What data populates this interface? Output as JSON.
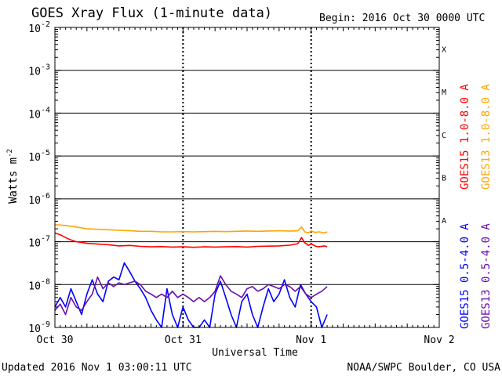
{
  "header": {
    "title": "GOES Xray Flux (1-minute data)",
    "begin": "Begin:  2016 Oct 30 0000 UTC"
  },
  "footer": {
    "updated": "Updated 2016 Nov  1 03:00:11 UTC",
    "credit": "NOAA/SWPC Boulder, CO USA"
  },
  "chart_data": {
    "type": "line",
    "title": "GOES Xray Flux (1-minute data)",
    "xlabel": "Universal Time",
    "ylabel": "Watts m",
    "ylabel_exponent": "-2",
    "yscale": "log",
    "ylim": [
      1e-09,
      0.01
    ],
    "xlim_hours": [
      0,
      72
    ],
    "x_ticks": [
      {
        "label": "Oct 30",
        "hour": 0
      },
      {
        "label": "Oct 31",
        "hour": 24
      },
      {
        "label": "Nov 1",
        "hour": 48
      },
      {
        "label": "Nov 2",
        "hour": 72
      }
    ],
    "y_ticks": [
      {
        "base": "10",
        "exp": "-2",
        "value": 0.01
      },
      {
        "base": "10",
        "exp": "-3",
        "value": 0.001
      },
      {
        "base": "10",
        "exp": "-4",
        "value": 0.0001
      },
      {
        "base": "10",
        "exp": "-5",
        "value": 1e-05
      },
      {
        "base": "10",
        "exp": "-6",
        "value": 1e-06
      },
      {
        "base": "10",
        "exp": "-7",
        "value": 1e-07
      },
      {
        "base": "10",
        "exp": "-8",
        "value": 1e-08
      },
      {
        "base": "10",
        "exp": "-9",
        "value": 1e-09
      }
    ],
    "flare_classes": [
      {
        "label": "X",
        "value": 0.001
      },
      {
        "label": "M",
        "value": 0.0001
      },
      {
        "label": "C",
        "value": 1e-05
      },
      {
        "label": "B",
        "value": 1e-06
      },
      {
        "label": "A",
        "value": 1e-07
      }
    ],
    "grid": true,
    "legend_position": "right",
    "series": [
      {
        "name": "GOES15 1.0-8.0 A",
        "color": "#ff0000",
        "points": [
          [
            0,
            1.6e-07
          ],
          [
            1,
            1.45e-07
          ],
          [
            2,
            1.25e-07
          ],
          [
            3,
            1.1e-07
          ],
          [
            4,
            1e-07
          ],
          [
            6,
            9.2e-08
          ],
          [
            8,
            8.8e-08
          ],
          [
            10,
            8.5e-08
          ],
          [
            12,
            8e-08
          ],
          [
            14,
            8.2e-08
          ],
          [
            16,
            7.8e-08
          ],
          [
            18,
            7.6e-08
          ],
          [
            20,
            7.7e-08
          ],
          [
            22,
            7.5e-08
          ],
          [
            24,
            7.6e-08
          ],
          [
            26,
            7.4e-08
          ],
          [
            28,
            7.6e-08
          ],
          [
            30,
            7.5e-08
          ],
          [
            32,
            7.6e-08
          ],
          [
            34,
            7.7e-08
          ],
          [
            36,
            7.5e-08
          ],
          [
            38,
            7.8e-08
          ],
          [
            40,
            7.9e-08
          ],
          [
            42,
            8e-08
          ],
          [
            44,
            8.3e-08
          ],
          [
            45.5,
            9e-08
          ],
          [
            46.2,
            1.25e-07
          ],
          [
            46.8,
            9.5e-08
          ],
          [
            47.5,
            8.2e-08
          ],
          [
            48,
            9e-08
          ],
          [
            48.7,
            8e-08
          ],
          [
            49.3,
            7.6e-08
          ],
          [
            50.5,
            8e-08
          ],
          [
            51,
            7.6e-08
          ]
        ]
      },
      {
        "name": "GOES13 1.0-8.0 A",
        "color": "#ffa500",
        "points": [
          [
            0,
            2.5e-07
          ],
          [
            2,
            2.4e-07
          ],
          [
            4,
            2.2e-07
          ],
          [
            6,
            2e-07
          ],
          [
            8,
            1.95e-07
          ],
          [
            10,
            1.9e-07
          ],
          [
            12,
            1.85e-07
          ],
          [
            14,
            1.8e-07
          ],
          [
            16,
            1.75e-07
          ],
          [
            18,
            1.75e-07
          ],
          [
            20,
            1.7e-07
          ],
          [
            22,
            1.7e-07
          ],
          [
            24,
            1.72e-07
          ],
          [
            26,
            1.7e-07
          ],
          [
            28,
            1.72e-07
          ],
          [
            30,
            1.75e-07
          ],
          [
            32,
            1.72e-07
          ],
          [
            34,
            1.75e-07
          ],
          [
            36,
            1.78e-07
          ],
          [
            38,
            1.75e-07
          ],
          [
            40,
            1.78e-07
          ],
          [
            42,
            1.8e-07
          ],
          [
            44,
            1.78e-07
          ],
          [
            45.5,
            1.8e-07
          ],
          [
            46.2,
            2.2e-07
          ],
          [
            46.8,
            1.7e-07
          ],
          [
            47.5,
            1.6e-07
          ],
          [
            48,
            1.8e-07
          ],
          [
            48.7,
            1.65e-07
          ],
          [
            49.5,
            1.7e-07
          ],
          [
            50.5,
            1.6e-07
          ],
          [
            51,
            1.7e-07
          ]
        ]
      },
      {
        "name": "GOES15 0.5-4.0 A",
        "color": "#0000ff",
        "points": [
          [
            0,
            3e-09
          ],
          [
            1,
            5e-09
          ],
          [
            2,
            3e-09
          ],
          [
            3,
            8e-09
          ],
          [
            4,
            4e-09
          ],
          [
            5,
            2e-09
          ],
          [
            6,
            6e-09
          ],
          [
            7,
            1.3e-08
          ],
          [
            8,
            6e-09
          ],
          [
            9,
            4e-09
          ],
          [
            10,
            1.2e-08
          ],
          [
            11,
            1.5e-08
          ],
          [
            12,
            1.3e-08
          ],
          [
            13,
            3.2e-08
          ],
          [
            14,
            2e-08
          ],
          [
            15,
            1.2e-08
          ],
          [
            16,
            8e-09
          ],
          [
            17,
            5e-09
          ],
          [
            18,
            2.5e-09
          ],
          [
            19,
            1.5e-09
          ],
          [
            20,
            1e-09
          ],
          [
            21,
            8e-09
          ],
          [
            22,
            2e-09
          ],
          [
            23,
            1e-09
          ],
          [
            24,
            3e-09
          ],
          [
            25,
            1.5e-09
          ],
          [
            26,
            1e-09
          ],
          [
            27,
            1e-09
          ],
          [
            28,
            1.5e-09
          ],
          [
            29,
            1e-09
          ],
          [
            30,
            6e-09
          ],
          [
            31,
            1.2e-08
          ],
          [
            32,
            5e-09
          ],
          [
            33,
            2e-09
          ],
          [
            34,
            1e-09
          ],
          [
            35,
            4e-09
          ],
          [
            36,
            6e-09
          ],
          [
            37,
            2e-09
          ],
          [
            38,
            1e-09
          ],
          [
            39,
            3e-09
          ],
          [
            40,
            8e-09
          ],
          [
            41,
            4e-09
          ],
          [
            42,
            6e-09
          ],
          [
            43,
            1.3e-08
          ],
          [
            44,
            5e-09
          ],
          [
            45,
            3e-09
          ],
          [
            46,
            1e-08
          ],
          [
            47,
            6e-09
          ],
          [
            48,
            4e-09
          ],
          [
            49,
            3e-09
          ],
          [
            50,
            1e-09
          ],
          [
            51,
            2e-09
          ]
        ]
      },
      {
        "name": "GOES13 0.5-4.0 A",
        "color": "#6a0dad",
        "points": [
          [
            0,
            2.5e-09
          ],
          [
            1,
            3.5e-09
          ],
          [
            2,
            2e-09
          ],
          [
            3,
            5e-09
          ],
          [
            4,
            3e-09
          ],
          [
            5,
            2.5e-09
          ],
          [
            6,
            4e-09
          ],
          [
            7,
            6e-09
          ],
          [
            8,
            1.5e-08
          ],
          [
            9,
            8e-09
          ],
          [
            10,
            1.1e-08
          ],
          [
            11,
            9e-09
          ],
          [
            12,
            1.1e-08
          ],
          [
            13,
            1e-08
          ],
          [
            14,
            1.1e-08
          ],
          [
            15,
            1.2e-08
          ],
          [
            16,
            1e-08
          ],
          [
            17,
            7e-09
          ],
          [
            18,
            6e-09
          ],
          [
            19,
            5e-09
          ],
          [
            20,
            6e-09
          ],
          [
            21,
            5e-09
          ],
          [
            22,
            7e-09
          ],
          [
            23,
            5e-09
          ],
          [
            24,
            6e-09
          ],
          [
            25,
            5e-09
          ],
          [
            26,
            4e-09
          ],
          [
            27,
            5e-09
          ],
          [
            28,
            4e-09
          ],
          [
            29,
            5e-09
          ],
          [
            30,
            7e-09
          ],
          [
            31,
            1.6e-08
          ],
          [
            32,
            1e-08
          ],
          [
            33,
            7e-09
          ],
          [
            34,
            6e-09
          ],
          [
            35,
            5e-09
          ],
          [
            36,
            8e-09
          ],
          [
            37,
            9e-09
          ],
          [
            38,
            7e-09
          ],
          [
            39,
            8e-09
          ],
          [
            40,
            1e-08
          ],
          [
            41,
            9e-09
          ],
          [
            42,
            8e-09
          ],
          [
            43,
            1e-08
          ],
          [
            44,
            9e-09
          ],
          [
            45,
            7e-09
          ],
          [
            46,
            9e-09
          ],
          [
            47,
            6e-09
          ],
          [
            48,
            5e-09
          ],
          [
            49,
            6e-09
          ],
          [
            50,
            7e-09
          ],
          [
            51,
            9e-09
          ]
        ]
      }
    ]
  }
}
